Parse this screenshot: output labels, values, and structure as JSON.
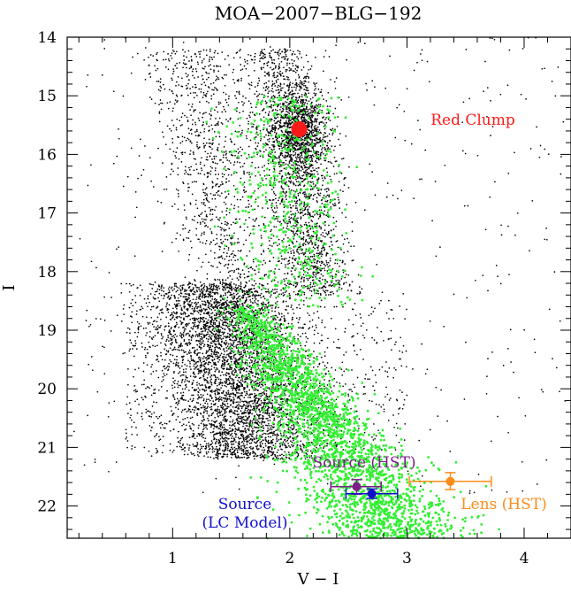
{
  "chart_data": {
    "type": "scatter",
    "title": "MOA−2007−BLG−192",
    "xlabel": "V − I",
    "ylabel": "I",
    "xlim": [
      0.1,
      4.4
    ],
    "ylim": [
      22.55,
      14.0
    ],
    "y_inverted": true,
    "x_ticks": [
      "1",
      "2",
      "3",
      "4"
    ],
    "y_ticks": [
      "14",
      "15",
      "16",
      "17",
      "18",
      "19",
      "20",
      "21",
      "22"
    ],
    "grid": false,
    "series": [
      {
        "color": "#000000",
        "point_count_approx": 9000
      },
      {
        "color": "#33ee33",
        "point_count_approx": 3000
      }
    ],
    "markers": [
      {
        "label": "Red Clump",
        "x": 2.08,
        "y": 15.57,
        "color": "#ff1a1a"
      },
      {
        "label": "Source (HST)",
        "x": 2.57,
        "y": 21.67,
        "x_err": [
          2.35,
          2.78
        ],
        "y_err": [
          21.55,
          21.8
        ],
        "color": "#7a1f8a"
      },
      {
        "label": "Source\n(LC Model)",
        "x": 2.7,
        "y": 21.79,
        "x_err": [
          2.48,
          2.92
        ],
        "y_err": [
          21.71,
          21.87
        ],
        "color": "#1010cc"
      },
      {
        "label": "Lens (HST)",
        "x": 3.37,
        "y": 21.58,
        "x_err": [
          3.02,
          3.72
        ],
        "y_err": [
          21.43,
          21.72
        ],
        "color": "#ff8c1a"
      }
    ]
  }
}
